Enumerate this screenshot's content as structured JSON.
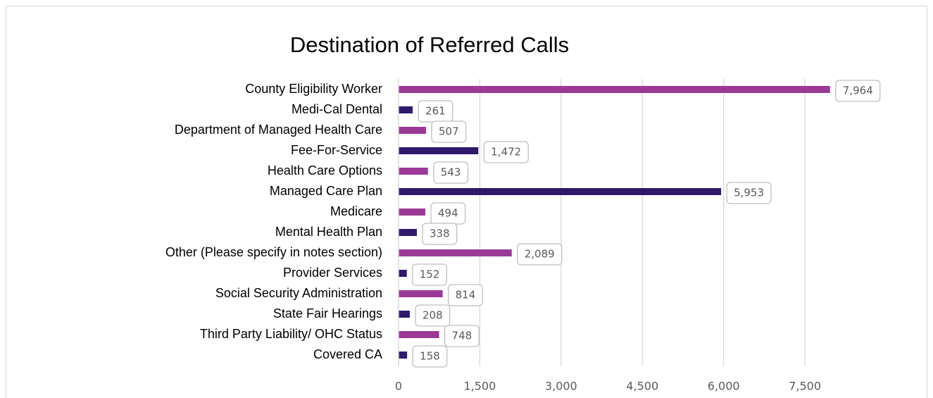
{
  "chart_data": {
    "type": "bar",
    "orientation": "horizontal",
    "title": "Destination of Referred Calls",
    "categories": [
      "County Eligibility Worker",
      "Medi-Cal Dental",
      "Department of Managed Health Care",
      "Fee-For-Service",
      "Health Care Options",
      "Managed Care Plan",
      "Medicare",
      "Mental Health Plan",
      "Other (Please specify in notes section)",
      "Provider Services",
      "Social Security Administration",
      "State Fair Hearings",
      "Third Party Liability/ OHC Status",
      "Covered CA"
    ],
    "values": [
      7964,
      261,
      507,
      1472,
      543,
      5953,
      494,
      338,
      2089,
      152,
      814,
      208,
      748,
      158
    ],
    "value_labels": [
      "7,964",
      "261",
      "507",
      "1,472",
      "543",
      "5,953",
      "494",
      "338",
      "2,089",
      "152",
      "814",
      "208",
      "748",
      "158"
    ],
    "colors": [
      "#9b3a96",
      "#2e1a6b",
      "#9b3a96",
      "#2e1a6b",
      "#9b3a96",
      "#2e1a6b",
      "#9b3a96",
      "#2e1a6b",
      "#9b3a96",
      "#2e1a6b",
      "#9b3a96",
      "#2e1a6b",
      "#9b3a96",
      "#2e1a6b"
    ],
    "xlim": [
      0,
      9500
    ],
    "xticks": [
      0,
      {
        "value": 1500,
        "label": "1,500"
      },
      {
        "value": 3000,
        "label": "3,000"
      },
      {
        "value": 4500,
        "label": "4,500"
      },
      {
        "value": 6000,
        "label": "6,000"
      },
      {
        "value": 7500,
        "label": "7,500"
      }
    ],
    "grid": true
  }
}
